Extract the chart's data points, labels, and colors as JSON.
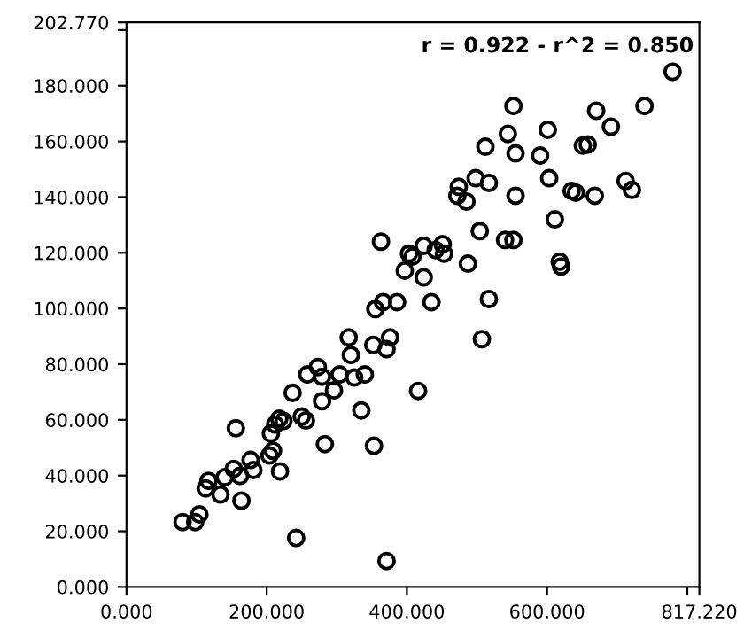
{
  "chart_data": {
    "type": "scatter",
    "marker": "circle",
    "grid": false,
    "annotations": [
      "r = 0.922 - r^2 = 0.850"
    ],
    "xlim": [
      0,
      817.22
    ],
    "xticks": [
      {
        "value": 0,
        "label": "0.000"
      },
      {
        "value": 200,
        "label": "200.000"
      },
      {
        "value": 400,
        "label": "400.000"
      },
      {
        "value": 600,
        "label": "600.000"
      },
      {
        "value": 800,
        "label": null
      },
      {
        "value": 817.22,
        "label": "817.220"
      }
    ],
    "ylim": [
      0,
      202.77
    ],
    "yticks": [
      {
        "value": 0,
        "label": "0.000"
      },
      {
        "value": 20,
        "label": "20.000"
      },
      {
        "value": 40,
        "label": "40.000"
      },
      {
        "value": 60,
        "label": "60.000"
      },
      {
        "value": 80,
        "label": "80.000"
      },
      {
        "value": 100,
        "label": "100.000"
      },
      {
        "value": 120,
        "label": "120.000"
      },
      {
        "value": 140,
        "label": "140.000"
      },
      {
        "value": 160,
        "label": "160.000"
      },
      {
        "value": 180,
        "label": "180.000"
      },
      {
        "value": 200,
        "label": null
      },
      {
        "value": 202.77,
        "label": "202.770"
      }
    ],
    "series": [
      {
        "color": "#000000",
        "x": [
          80,
          98,
          104,
          113,
          117,
          134,
          140,
          153,
          156,
          164,
          162,
          177,
          181,
          204,
          209,
          206,
          212,
          218,
          224,
          219,
          242,
          237,
          250,
          256,
          258,
          273,
          279,
          279,
          283,
          296,
          304,
          325,
          340,
          335,
          353,
          371,
          416,
          320,
          317,
          352,
          371,
          376,
          355,
          366,
          386,
          435,
          517,
          507,
          397,
          403,
          408,
          424,
          424,
          441,
          451,
          453,
          363,
          487,
          504,
          540,
          552,
          611,
          618,
          620,
          472,
          485,
          498,
          517,
          555,
          603,
          635,
          641,
          668,
          712,
          721,
          779,
          552,
          670,
          739,
          544,
          601,
          691,
          512,
          555,
          590,
          651,
          658,
          474
        ],
        "values": [
          23.3,
          23.3,
          26.1,
          35.4,
          38.1,
          33.2,
          39.4,
          42.4,
          57.0,
          31.0,
          39.9,
          45.6,
          42.0,
          47.2,
          48.9,
          55.1,
          58.3,
          60.4,
          59.6,
          41.5,
          17.6,
          69.7,
          61.2,
          59.8,
          76.3,
          79.0,
          75.5,
          66.7,
          51.3,
          70.6,
          76.3,
          75.2,
          76.3,
          63.4,
          50.7,
          9.3,
          70.4,
          83.3,
          89.6,
          86.9,
          85.4,
          89.6,
          99.8,
          102.3,
          102.3,
          102.3,
          103.4,
          89.0,
          113.6,
          119.7,
          118.7,
          111.2,
          122.5,
          121.0,
          123.1,
          119.7,
          124.0,
          116.1,
          127.8,
          124.6,
          124.6,
          132.0,
          116.8,
          115.1,
          140.5,
          138.4,
          146.8,
          145.1,
          140.5,
          146.8,
          142.2,
          141.6,
          140.5,
          145.8,
          142.6,
          185.0,
          172.7,
          171.0,
          172.7,
          162.7,
          164.2,
          165.3,
          158.1,
          155.7,
          154.9,
          158.5,
          158.9,
          143.7
        ]
      }
    ]
  }
}
